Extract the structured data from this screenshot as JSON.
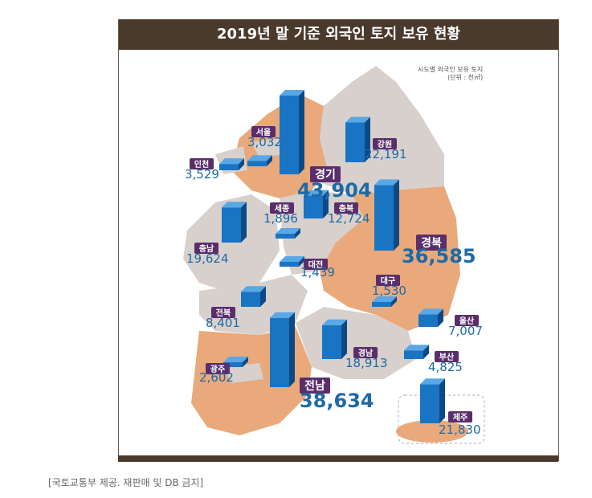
{
  "title": "2019년 말 기준 외국인 토지 보유 현황",
  "unit_note": [
    "시도별 외국인 보유 토지",
    "(단위 : 천㎡)"
  ],
  "caption": "[국토교통부 제공. 재판매 및 DB 금지]",
  "colors": {
    "header": "#4a3a2c",
    "bar_front": "#1a74c4",
    "bar_side": "#0d4a85",
    "bar_top": "#5aa7e6",
    "region_gray": "#d8d0cc",
    "region_orange": "#e9a97a",
    "label_bg": "#5a2e6b",
    "value_text": "#1d6aa8"
  },
  "chart_data": {
    "type": "bar",
    "title": "2019년 말 기준 외국인 토지 보유 현황",
    "unit": "천㎡",
    "categories": [
      "경기",
      "서울",
      "인천",
      "강원",
      "세종",
      "충북",
      "충남",
      "대전",
      "경북",
      "대구",
      "전북",
      "울산",
      "광주",
      "경남",
      "부산",
      "전남",
      "제주"
    ],
    "values": [
      43904,
      3032,
      3529,
      22191,
      1896,
      12724,
      19624,
      1439,
      36585,
      1530,
      8401,
      7007,
      2602,
      18913,
      4825,
      38634,
      21830
    ],
    "value_labels": [
      "43,904",
      "3,032",
      "3,529",
      "22,191",
      "1,896",
      "12,724",
      "19,624",
      "1,439",
      "36,585",
      "1,530",
      "8,401",
      "7,007",
      "2,602",
      "18,913",
      "4,825",
      "38,634",
      "21,830"
    ]
  }
}
